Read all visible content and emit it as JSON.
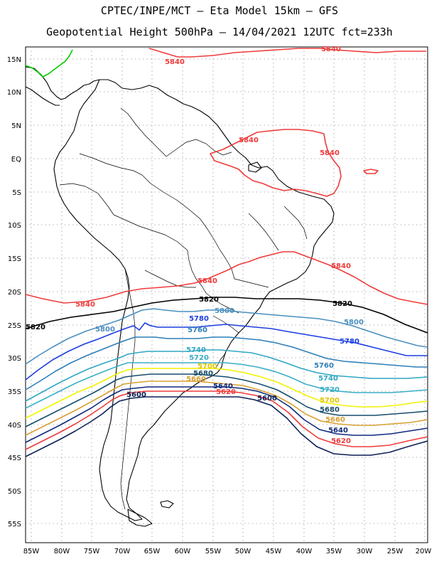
{
  "header": {
    "line1": "CPTEC/INPE/MCT –  Eta Model 15km – GFS",
    "line2": "Geopotential Height 500hPa – 14/04/2021 12UTC fct=233h"
  },
  "axes": {
    "lat_labels": [
      "15N",
      "10N",
      "5N",
      "EQ",
      "5S",
      "10S",
      "15S",
      "20S",
      "25S",
      "30S",
      "35S",
      "40S",
      "45S",
      "50S",
      "55S"
    ],
    "lon_labels": [
      "85W",
      "80W",
      "75W",
      "70W",
      "65W",
      "60W",
      "55W",
      "50W",
      "45W",
      "40W",
      "35W",
      "30W",
      "25W",
      "20W"
    ]
  },
  "colors": {
    "c5840": "#ef3b3b",
    "c5820": "#000000",
    "c5800": "#4a8fbf",
    "c5780": "#1c3ee0",
    "c5760": "#2d7fb8",
    "c5740": "#2fa7c4",
    "c5720": "#3aaec7",
    "c5700": "#f2f200",
    "c5680": "#174d6d",
    "c5660": "#d8a033",
    "c5640": "#102a7d",
    "c5620": "#ef3b3b",
    "c5600": "#0d1f55",
    "honduras_border": "#00cc00"
  },
  "contour_labels": [
    {
      "key": "l5840a",
      "text": "5840"
    },
    {
      "key": "l5840b",
      "text": "5840"
    },
    {
      "key": "l5840c",
      "text": "5840"
    },
    {
      "key": "l5840d",
      "text": "5840"
    },
    {
      "key": "l5840e",
      "text": "5840"
    },
    {
      "key": "l5840f",
      "text": "5840"
    },
    {
      "key": "l5840g",
      "text": "5840"
    },
    {
      "key": "l5820a",
      "text": "5820"
    },
    {
      "key": "l5820b",
      "text": "5820"
    },
    {
      "key": "l5820c",
      "text": "5820"
    },
    {
      "key": "l5800a",
      "text": "5800"
    },
    {
      "key": "l5800b",
      "text": "5800"
    },
    {
      "key": "l5800c",
      "text": "5800"
    },
    {
      "key": "l5780a",
      "text": "5780"
    },
    {
      "key": "l5780b",
      "text": "5780"
    },
    {
      "key": "l5760a",
      "text": "5760"
    },
    {
      "key": "l5760b",
      "text": "5760"
    },
    {
      "key": "l5740a",
      "text": "5740"
    },
    {
      "key": "l5740b",
      "text": "5740"
    },
    {
      "key": "l5720a",
      "text": "5720"
    },
    {
      "key": "l5720b",
      "text": "5720"
    },
    {
      "key": "l5700a",
      "text": "5700"
    },
    {
      "key": "l5700b",
      "text": "5700"
    },
    {
      "key": "l5680a",
      "text": "5680"
    },
    {
      "key": "l5680b",
      "text": "5680"
    },
    {
      "key": "l5660a",
      "text": "5660"
    },
    {
      "key": "l5660b",
      "text": "5660"
    },
    {
      "key": "l5640a",
      "text": "5640"
    },
    {
      "key": "l5640b",
      "text": "5640"
    },
    {
      "key": "l5620a",
      "text": "5620"
    },
    {
      "key": "l5620b",
      "text": "5620"
    },
    {
      "key": "l5600a",
      "text": "5600"
    },
    {
      "key": "l5600b",
      "text": "5600"
    }
  ]
}
